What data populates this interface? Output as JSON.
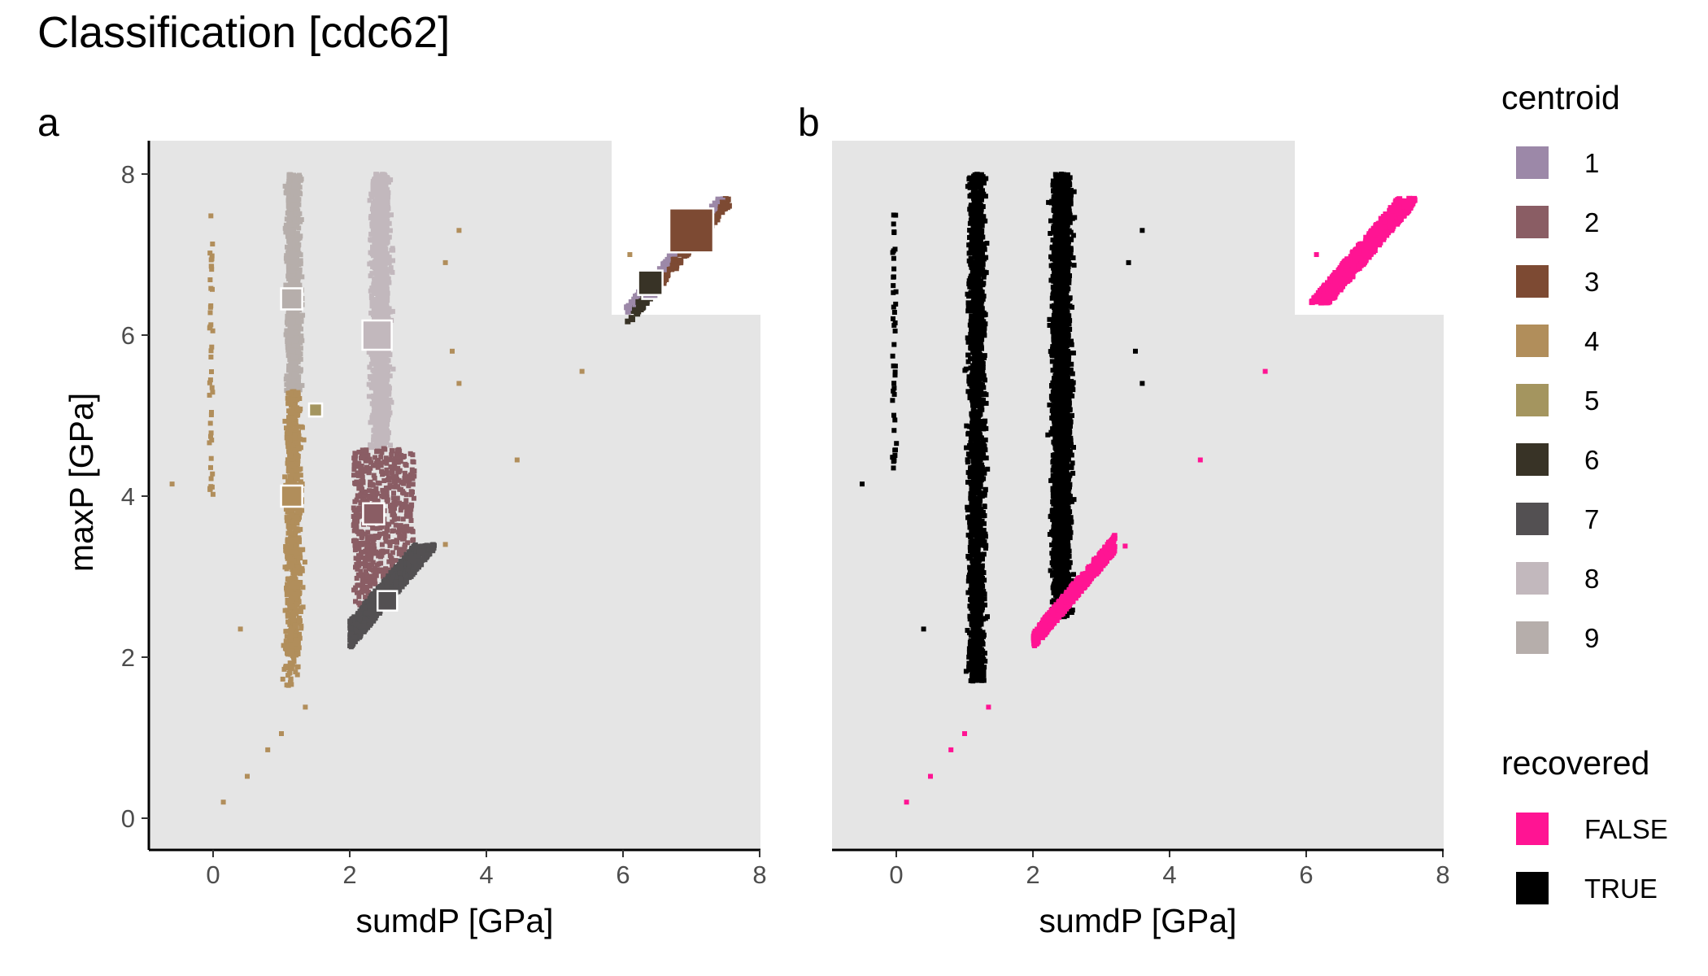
{
  "title": "Classification [cdc62]",
  "colors": {
    "panel_bg": "#e5e5e5",
    "axis": "#000000",
    "tick_text": "#4d4d4d",
    "centroid_outline": "#ffffff"
  },
  "legend": {
    "centroid": {
      "title": "centroid",
      "items": [
        {
          "label": "1",
          "color": "#9c88a8"
        },
        {
          "label": "2",
          "color": "#8a5d64"
        },
        {
          "label": "3",
          "color": "#7d4a33"
        },
        {
          "label": "4",
          "color": "#b18e5b"
        },
        {
          "label": "5",
          "color": "#a4955f"
        },
        {
          "label": "6",
          "color": "#383326"
        },
        {
          "label": "7",
          "color": "#535052"
        },
        {
          "label": "8",
          "color": "#c2b8bd"
        },
        {
          "label": "9",
          "color": "#b6aeab"
        }
      ]
    },
    "recovered": {
      "title": "recovered",
      "items": [
        {
          "label": "FALSE",
          "color": "#ff1493"
        },
        {
          "label": "TRUE",
          "color": "#000000"
        }
      ]
    }
  },
  "chart_data": [
    {
      "panel": "a",
      "type": "scatter",
      "xlabel": "sumdP [GPa]",
      "ylabel": "maxP [GPa]",
      "xlim": [
        -0.9,
        8
      ],
      "ylim": [
        -0.4,
        8.4
      ],
      "xticks": [
        "0",
        "2",
        "4",
        "6",
        "8"
      ],
      "yticks": [
        "0",
        "2",
        "4",
        "6",
        "8"
      ],
      "grid": false,
      "color_by": "centroid",
      "clusters": [
        {
          "centroid": "9",
          "x_range": [
            0.8,
            1.65
          ],
          "y_range": [
            5.3,
            8.0
          ],
          "center": [
            1.15,
            6.45
          ]
        },
        {
          "centroid": "8",
          "x_range": [
            2.0,
            3.0
          ],
          "y_range": [
            4.6,
            8.0
          ],
          "center": [
            2.4,
            6.0
          ]
        },
        {
          "centroid": "4",
          "x_range": [
            0.7,
            1.7
          ],
          "y_range": [
            1.6,
            5.3
          ],
          "center": [
            1.15,
            4.0
          ]
        },
        {
          "centroid": "5",
          "x_range": [
            1.4,
            1.6
          ],
          "y_range": [
            4.9,
            5.2
          ],
          "center": [
            1.5,
            5.07
          ]
        },
        {
          "centroid": "2",
          "x_range": [
            2.0,
            3.0
          ],
          "y_range": [
            2.6,
            4.6
          ],
          "center": [
            2.35,
            3.78
          ]
        },
        {
          "centroid": "7",
          "x_range": [
            2.0,
            3.3
          ],
          "y_range": [
            2.1,
            3.4
          ],
          "center": [
            2.55,
            2.7
          ]
        },
        {
          "centroid": "1",
          "x_range": [
            6.4,
            7.6
          ],
          "y_range": [
            6.5,
            7.7
          ],
          "center": [
            6.4,
            6.55
          ]
        },
        {
          "centroid": "3",
          "x_range": [
            6.2,
            7.6
          ],
          "y_range": [
            6.4,
            7.7
          ],
          "center": [
            7.0,
            7.3
          ]
        },
        {
          "centroid": "6",
          "x_range": [
            6.0,
            6.6
          ],
          "y_range": [
            6.4,
            6.7
          ],
          "center": [
            6.4,
            6.65
          ]
        }
      ],
      "sparse_points": {
        "centroid": "4",
        "points": [
          [
            -0.6,
            4.15
          ],
          [
            0.15,
            0.2
          ],
          [
            0.5,
            0.52
          ],
          [
            0.8,
            0.85
          ],
          [
            1.0,
            1.05
          ],
          [
            1.35,
            1.38
          ],
          [
            0.4,
            2.35
          ],
          [
            3.6,
            7.3
          ],
          [
            3.4,
            6.9
          ],
          [
            3.5,
            5.8
          ],
          [
            3.6,
            5.4
          ],
          [
            4.45,
            4.45
          ],
          [
            5.4,
            5.55
          ],
          [
            3.4,
            3.4
          ],
          [
            6.1,
            7.0
          ]
        ]
      }
    },
    {
      "panel": "b",
      "type": "scatter",
      "xlabel": "sumdP [GPa]",
      "ylabel": "",
      "xlim": [
        -0.9,
        8
      ],
      "ylim": [
        -0.4,
        8.4
      ],
      "xticks": [
        "0",
        "2",
        "4",
        "6",
        "8"
      ],
      "grid": false,
      "color_by": "recovered",
      "clusters": [
        {
          "recovered": "TRUE",
          "x_range": [
            0.7,
            1.7
          ],
          "y_range": [
            1.6,
            8.0
          ]
        },
        {
          "recovered": "TRUE",
          "x_range": [
            2.0,
            3.0
          ],
          "y_range": [
            2.4,
            8.0
          ]
        },
        {
          "recovered": "FALSE",
          "x_range": [
            2.0,
            3.3
          ],
          "y_range": [
            2.1,
            3.4
          ]
        },
        {
          "recovered": "FALSE",
          "x_range": [
            6.0,
            7.6
          ],
          "y_range": [
            6.4,
            7.7
          ]
        }
      ],
      "sparse_points": {
        "recovered": "FALSE",
        "points": [
          [
            0.15,
            0.2
          ],
          [
            0.5,
            0.52
          ],
          [
            0.8,
            0.85
          ],
          [
            1.0,
            1.05
          ],
          [
            1.35,
            1.38
          ],
          [
            4.45,
            4.45
          ],
          [
            5.4,
            5.55
          ],
          [
            3.35,
            3.38
          ],
          [
            6.15,
            7.0
          ]
        ]
      }
    }
  ]
}
